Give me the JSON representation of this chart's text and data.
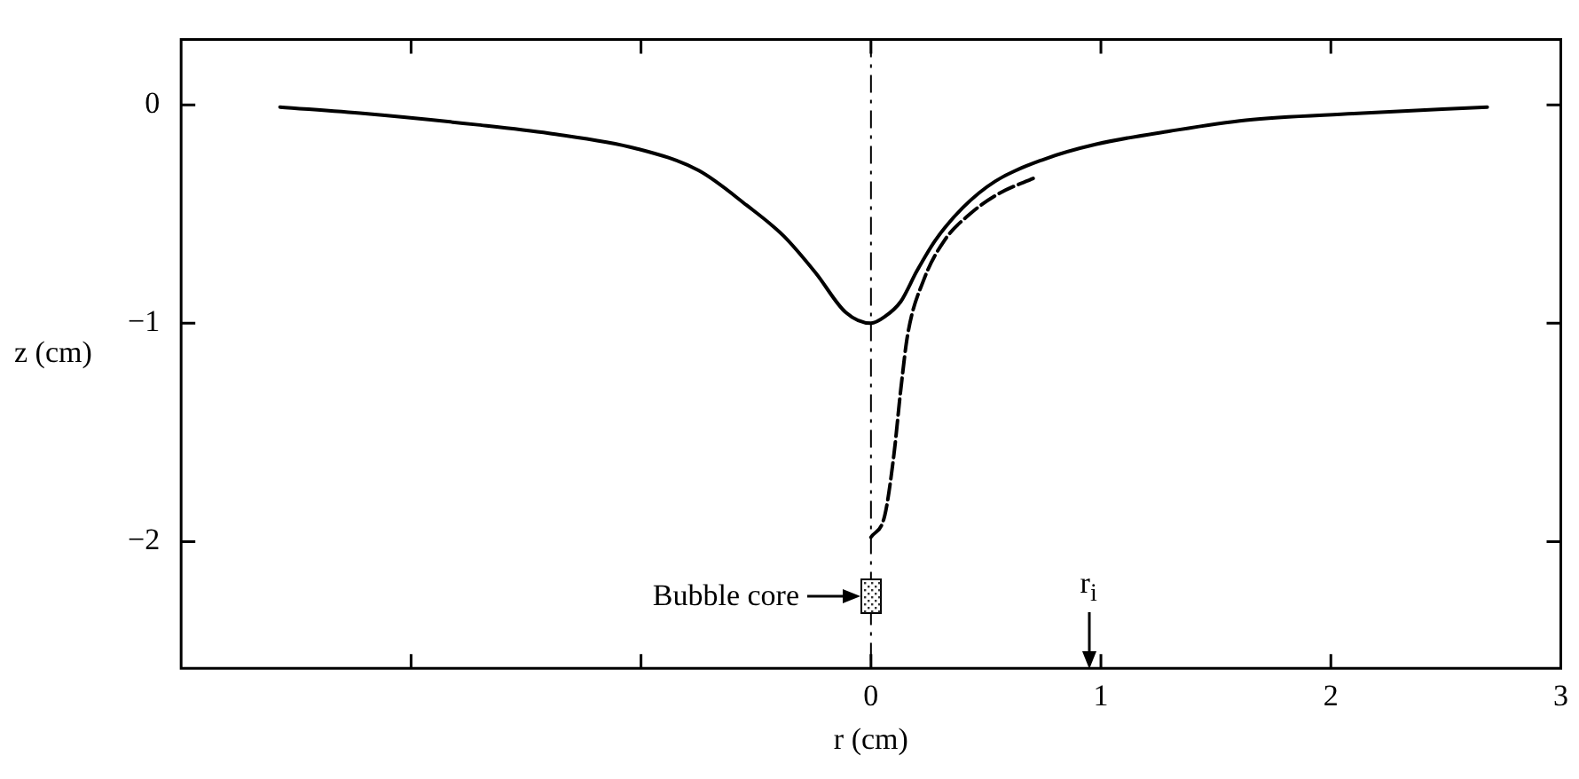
{
  "chart_data": {
    "type": "line",
    "xlabel": "r (cm)",
    "ylabel": "z (cm)",
    "xlim": [
      -3,
      3
    ],
    "ylim": [
      -2.58,
      0.3
    ],
    "xticks": [
      {
        "value": -2,
        "label": null
      },
      {
        "value": -1,
        "label": null
      },
      0,
      1,
      2,
      3
    ],
    "yticks": [
      -2,
      -1,
      0
    ],
    "grid": false,
    "legend": false,
    "marker": "none",
    "series": [
      {
        "color": "#000000",
        "line_style": "solid",
        "x": [
          -2.57,
          -2.2,
          -1.72,
          -1.4,
          -1.02,
          -0.75,
          -0.54,
          -0.38,
          -0.24,
          -0.11,
          0,
          0.06,
          0.13,
          0.2,
          0.28,
          0.4,
          0.54,
          0.75,
          0.98,
          1.3,
          1.63,
          2.1,
          2.68
        ],
        "values": [
          -0.01,
          -0.04,
          -0.09,
          -0.13,
          -0.2,
          -0.3,
          -0.46,
          -0.6,
          -0.77,
          -0.95,
          -1.0,
          -0.97,
          -0.9,
          -0.76,
          -0.62,
          -0.47,
          -0.35,
          -0.25,
          -0.18,
          -0.12,
          -0.07,
          -0.04,
          -0.01
        ]
      },
      {
        "color": "#000000",
        "line_style": "dashed",
        "x": [
          0,
          0.06,
          0.1,
          0.13,
          0.16,
          0.23,
          0.32,
          0.43,
          0.55,
          0.72
        ],
        "values": [
          -1.98,
          -1.88,
          -1.6,
          -1.3,
          -1.05,
          -0.8,
          -0.62,
          -0.5,
          -0.41,
          -0.33
        ]
      }
    ],
    "ref_lines": [
      {
        "axis": "x",
        "value": 0,
        "line_style": "dashdot",
        "color": "#000000"
      }
    ],
    "annotations": [
      {
        "text": "Bubble core",
        "x": 0,
        "y": -2.25
      },
      "r$_{i}$"
    ]
  }
}
